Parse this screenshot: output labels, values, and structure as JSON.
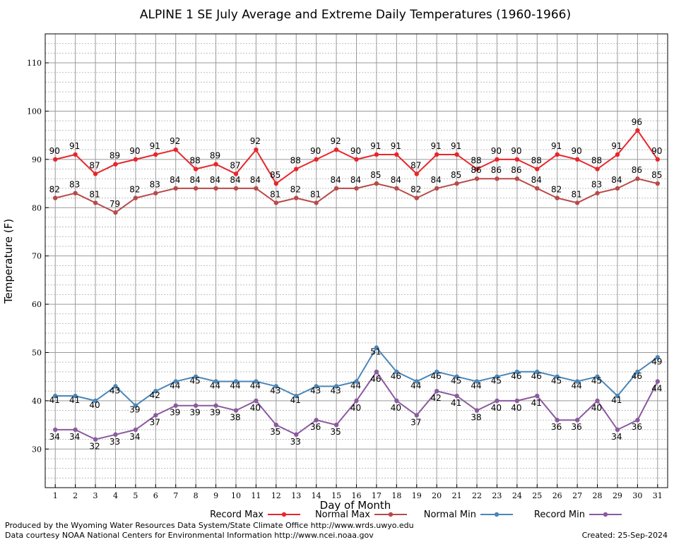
{
  "chart_data": {
    "type": "line",
    "title": "ALPINE 1 SE July Average and Extreme Daily Temperatures (1960-1966)",
    "xlabel": "Day of Month",
    "ylabel": "Temperature (F)",
    "x": [
      1,
      2,
      3,
      4,
      5,
      6,
      7,
      8,
      9,
      10,
      11,
      12,
      13,
      14,
      15,
      16,
      17,
      18,
      19,
      20,
      21,
      22,
      23,
      24,
      25,
      26,
      27,
      28,
      29,
      30,
      31
    ],
    "xlim": [
      0.5,
      31.5
    ],
    "ylim": [
      22,
      116
    ],
    "yticks": [
      30,
      40,
      50,
      60,
      70,
      80,
      90,
      100,
      110
    ],
    "grid": true,
    "legend_position": "bottom",
    "series": [
      {
        "name": "Record Max",
        "color": "#e8262b",
        "values": [
          90,
          91,
          87,
          89,
          90,
          91,
          92,
          88,
          89,
          87,
          92,
          85,
          88,
          90,
          92,
          90,
          91,
          91,
          87,
          91,
          91,
          88,
          90,
          90,
          88,
          91,
          90,
          88,
          91,
          96,
          90
        ]
      },
      {
        "name": "Normal Max",
        "color": "#b84a4a",
        "values": [
          82,
          83,
          81,
          79,
          82,
          83,
          84,
          84,
          84,
          84,
          84,
          81,
          82,
          81,
          84,
          84,
          85,
          84,
          82,
          84,
          85,
          86,
          86,
          86,
          84,
          82,
          81,
          83,
          84,
          86,
          85
        ]
      },
      {
        "name": "Normal Min",
        "color": "#4a86b8",
        "values": [
          41,
          41,
          40,
          43,
          39,
          42,
          44,
          45,
          44,
          44,
          44,
          43,
          41,
          43,
          43,
          44,
          51,
          46,
          44,
          46,
          45,
          44,
          45,
          46,
          46,
          45,
          44,
          45,
          41,
          46,
          49
        ]
      },
      {
        "name": "Record Min",
        "color": "#8a5a9e",
        "values": [
          34,
          34,
          32,
          33,
          34,
          37,
          39,
          39,
          39,
          38,
          40,
          35,
          33,
          36,
          35,
          40,
          46,
          40,
          37,
          42,
          41,
          38,
          40,
          40,
          41,
          36,
          36,
          40,
          34,
          36,
          44
        ]
      }
    ]
  },
  "footer": {
    "produced_by": "Produced by the Wyoming Water Resources Data System/State Climate Office http://www.wrds.uwyo.edu",
    "data_courtesy": "Data courtesy NOAA National Centers for Environmental Information http://www.ncei.noaa.gov",
    "created": "Created: 25-Sep-2024"
  }
}
